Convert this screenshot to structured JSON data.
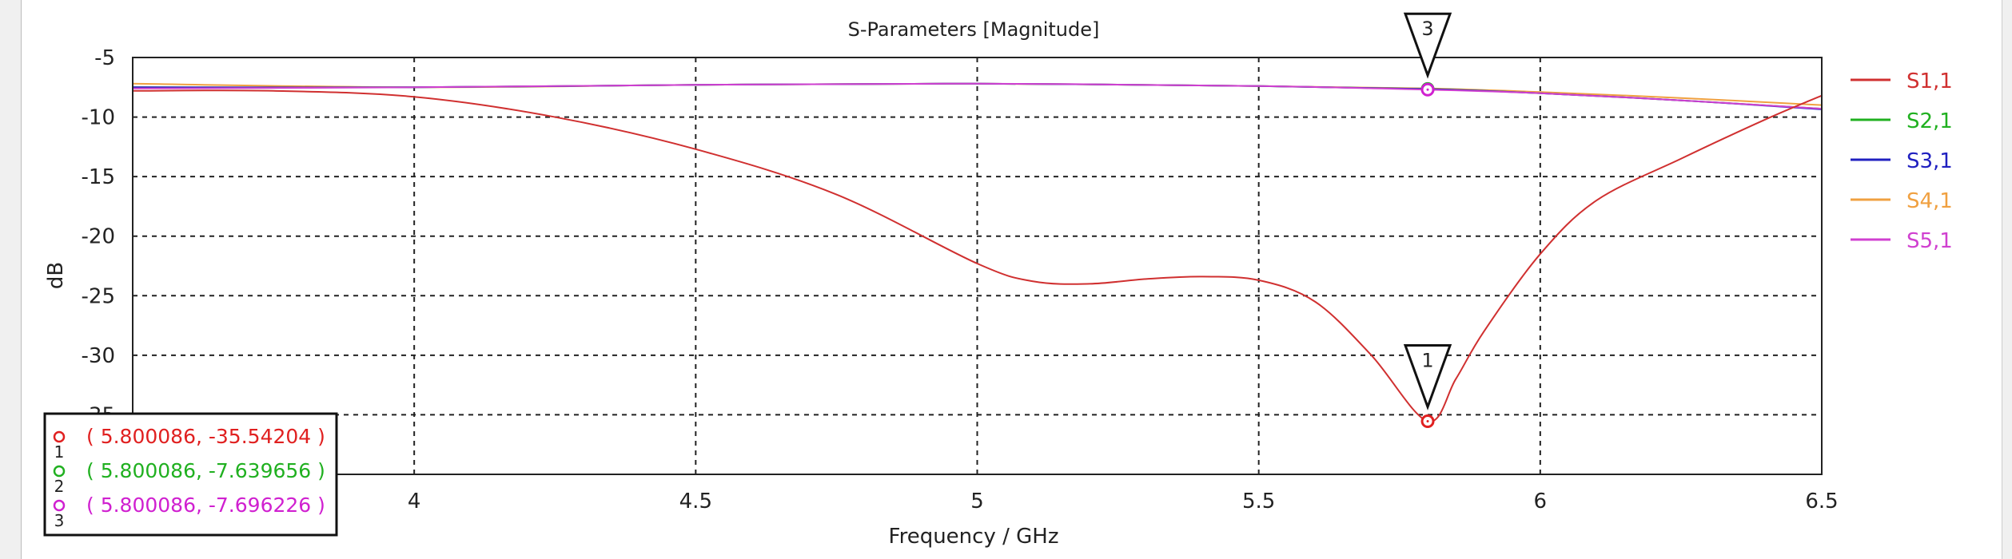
{
  "chart_data": {
    "type": "line",
    "title": "S-Parameters [Magnitude]",
    "xlabel": "Frequency / GHz",
    "ylabel": "dB",
    "xlim": [
      3.5,
      6.5
    ],
    "ylim": [
      -40,
      -5
    ],
    "xticks": [
      4,
      4.5,
      5,
      5.5,
      6,
      6.5
    ],
    "xtick_labels": [
      "4",
      "4.5",
      "5",
      "5.5",
      "6",
      "6.5"
    ],
    "yticks": [
      -5,
      -10,
      -15,
      -20,
      -25,
      -30,
      -35
    ],
    "ytick_labels": [
      "-5",
      "-10",
      "-15",
      "-20",
      "-25",
      "-30",
      "-35"
    ],
    "grid": true,
    "legend_position": "right",
    "series": [
      {
        "name": "S1,1",
        "color": "#d03030",
        "x": [
          3.5,
          3.75,
          4,
          4.25,
          4.5,
          4.75,
          5,
          5.1,
          5.2,
          5.3,
          5.4,
          5.5,
          5.6,
          5.7,
          5.8,
          5.85,
          5.9,
          6.0,
          6.1,
          6.25,
          6.4,
          6.5
        ],
        "y": [
          -7.8,
          -7.8,
          -8.3,
          -10,
          -12.7,
          -16.5,
          -22.3,
          -23.8,
          -24.0,
          -23.6,
          -23.4,
          -23.7,
          -25.5,
          -30,
          -35.54,
          -32,
          -28,
          -21.5,
          -17,
          -13.5,
          -10.2,
          -8.2
        ]
      },
      {
        "name": "S2,1",
        "color": "#20b020",
        "x": [
          3.5,
          4,
          4.5,
          5,
          5.5,
          5.8,
          6,
          6.25,
          6.5
        ],
        "y": [
          -7.5,
          -7.5,
          -7.3,
          -7.2,
          -7.4,
          -7.64,
          -8.0,
          -8.6,
          -9.3
        ]
      },
      {
        "name": "S3,1",
        "color": "#2020c0",
        "x": [
          3.5,
          4,
          4.5,
          5,
          5.5,
          5.8,
          6,
          6.25,
          6.5
        ],
        "y": [
          -7.5,
          -7.5,
          -7.3,
          -7.2,
          -7.4,
          -7.65,
          -8.0,
          -8.6,
          -9.35
        ]
      },
      {
        "name": "S4,1",
        "color": "#f0a040",
        "x": [
          3.5,
          4,
          4.5,
          5,
          5.5,
          5.8,
          6,
          6.25,
          6.5
        ],
        "y": [
          -7.2,
          -7.5,
          -7.3,
          -7.2,
          -7.4,
          -7.6,
          -7.9,
          -8.4,
          -9.0
        ]
      },
      {
        "name": "S5,1",
        "color": "#d040d0",
        "x": [
          3.5,
          4,
          4.5,
          5,
          5.5,
          5.8,
          6,
          6.25,
          6.5
        ],
        "y": [
          -7.6,
          -7.5,
          -7.3,
          -7.2,
          -7.4,
          -7.7,
          -8.0,
          -8.6,
          -9.3
        ]
      }
    ],
    "markers": [
      {
        "id": "1",
        "x": 5.800086,
        "y": -35.54204,
        "color": "#e02020",
        "label": "( 5.800086, -35.54204 )",
        "show_flag": true
      },
      {
        "id": "2",
        "x": 5.800086,
        "y": -7.639656,
        "color": "#20b020",
        "label": "( 5.800086, -7.639656 )",
        "show_flag": false
      },
      {
        "id": "3",
        "x": 5.800086,
        "y": -7.696226,
        "color": "#d020d0",
        "label": "( 5.800086, -7.696226 )",
        "show_flag": true
      }
    ]
  }
}
